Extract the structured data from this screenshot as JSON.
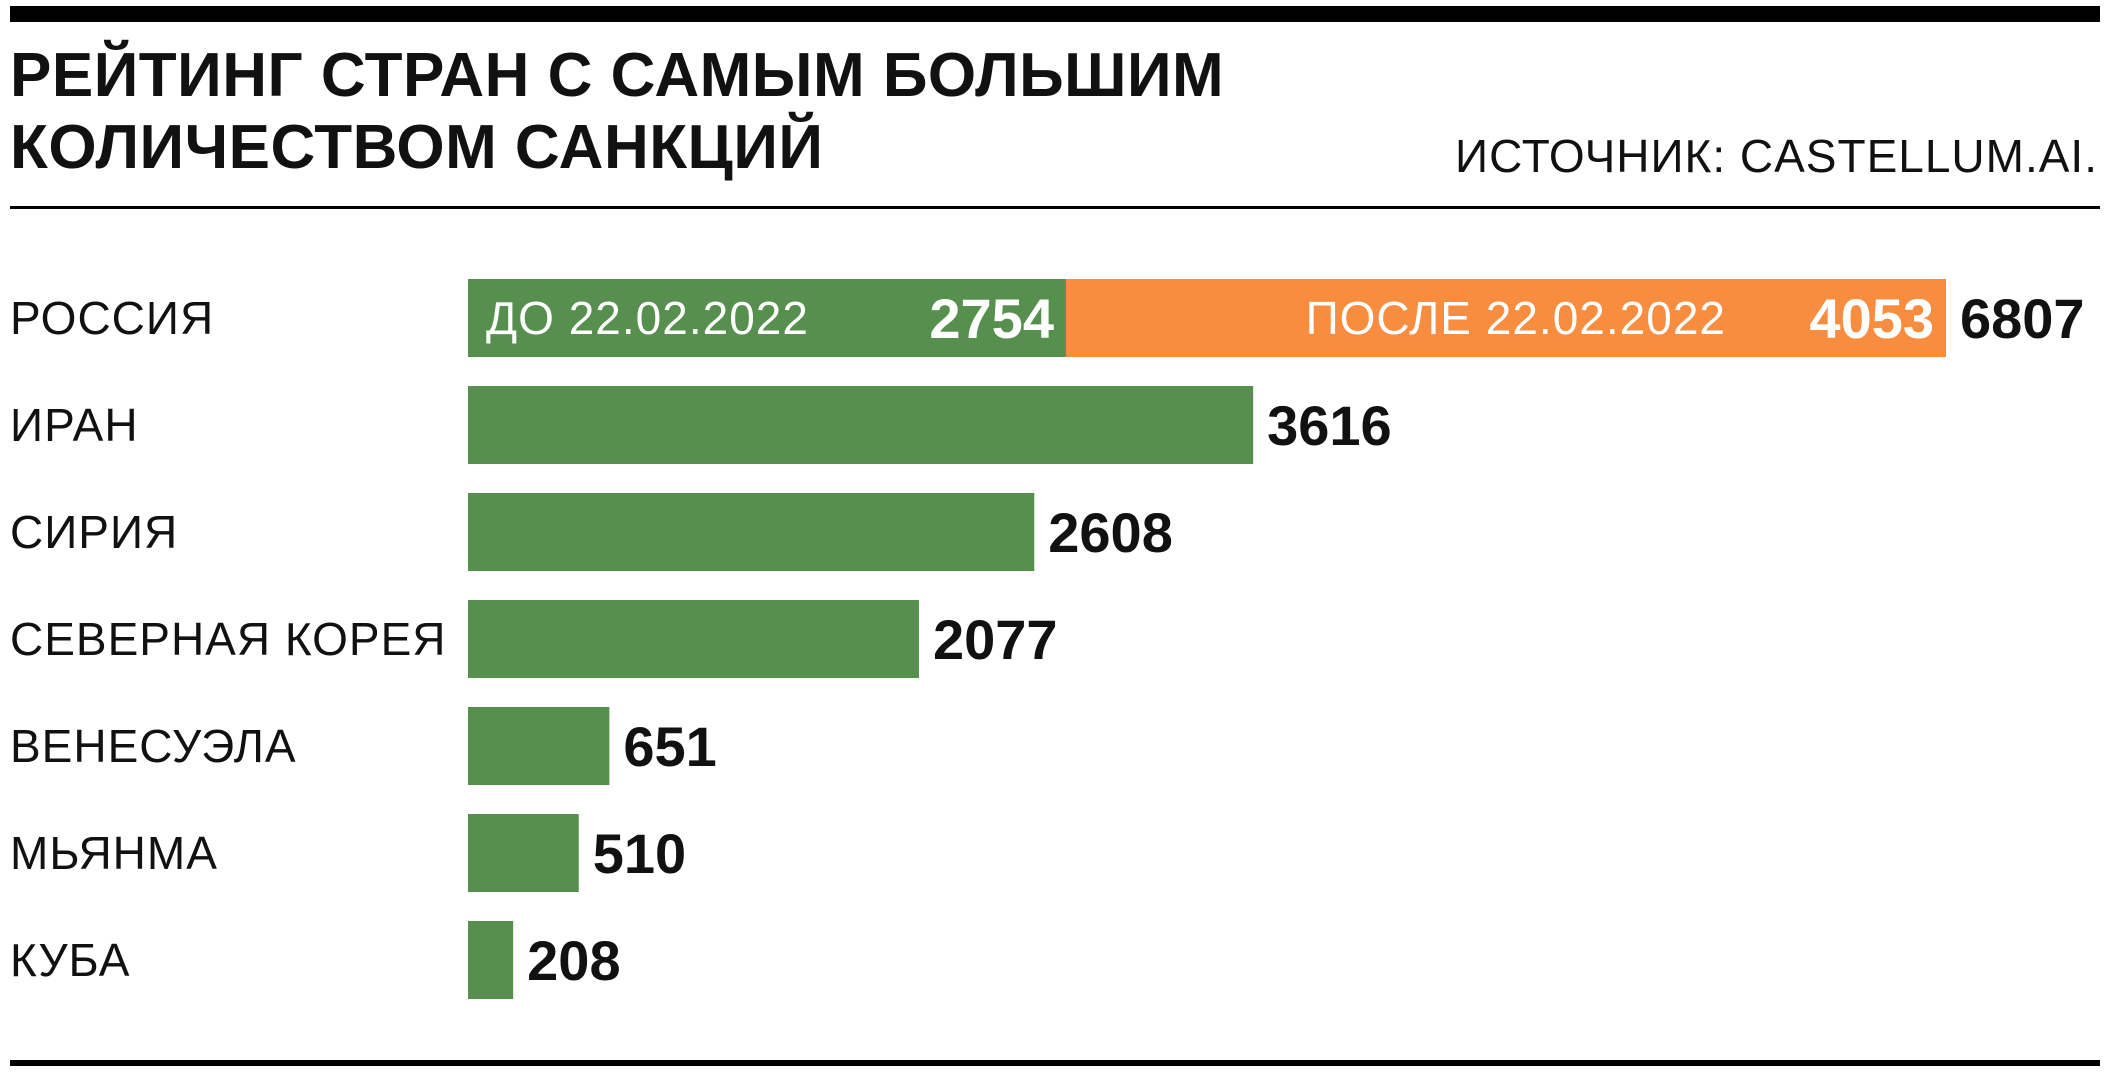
{
  "header": {
    "title": "РЕЙТИНГ СТРАН С САМЫМ БОЛЬШИМ\nКОЛИЧЕСТВОМ САНКЦИЙ",
    "source": "ИСТОЧНИК: CASTELLUM.AI."
  },
  "colors": {
    "green": "#568f4e",
    "orange": "#f98d3f",
    "text": "#111111",
    "segment_label": "#ffffff"
  },
  "chart_data": {
    "type": "bar",
    "orientation": "horizontal",
    "stacked": true,
    "categories": [
      "РОССИЯ",
      "ИРАН",
      "СИРИЯ",
      "СЕВЕРНАЯ КОРЕЯ",
      "ВЕНЕСУЭЛА",
      "МЬЯНМА",
      "КУБА"
    ],
    "series": [
      {
        "name": "ДО 22.02.2022",
        "color": "#568f4e",
        "values": [
          2754,
          3616,
          2608,
          2077,
          651,
          510,
          208
        ]
      },
      {
        "name": "ПОСЛЕ 22.02.2022",
        "color": "#f98d3f",
        "values": [
          4053,
          0,
          0,
          0,
          0,
          0,
          0
        ]
      }
    ],
    "totals": [
      6807,
      3616,
      2608,
      2077,
      651,
      510,
      208
    ],
    "segment_labels": {
      "РОССИЯ": {
        "ДО 22.02.2022": "2754",
        "ПОСЛЕ 22.02.2022": "4053"
      }
    },
    "xlim": [
      0,
      6807
    ],
    "grid": false,
    "legend": "inline-in-bars"
  }
}
